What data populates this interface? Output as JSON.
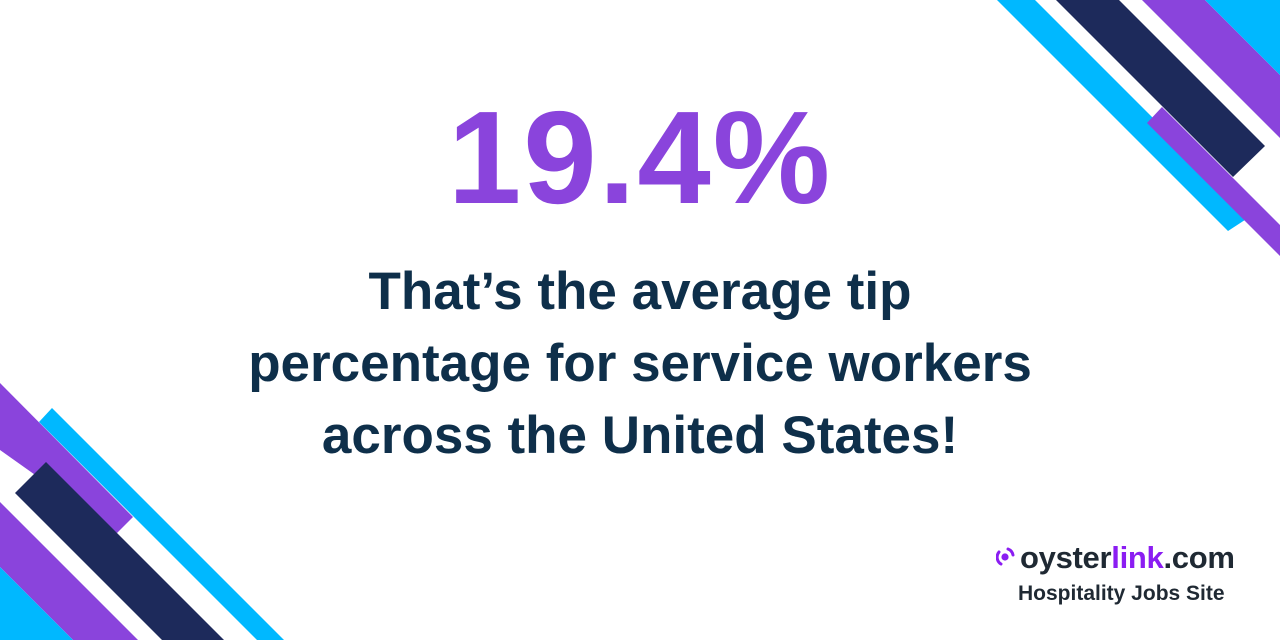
{
  "headline": {
    "value": "19.4%"
  },
  "message": {
    "lines": [
      "That’s the average tip",
      "percentage for service workers",
      "across the United States!"
    ]
  },
  "logo": {
    "brand_part1": "oyster",
    "brand_part2": "link",
    "brand_part3": ".com",
    "tagline": "Hospitality Jobs Site",
    "icon": "oyster-signal-icon"
  },
  "colors": {
    "purple": "#8a44dc",
    "cyan": "#00b8ff",
    "navy": "#1d2a5b",
    "text": "#0e2f4a",
    "logo_purple": "#8b1df2",
    "logo_text": "#1f2933"
  }
}
